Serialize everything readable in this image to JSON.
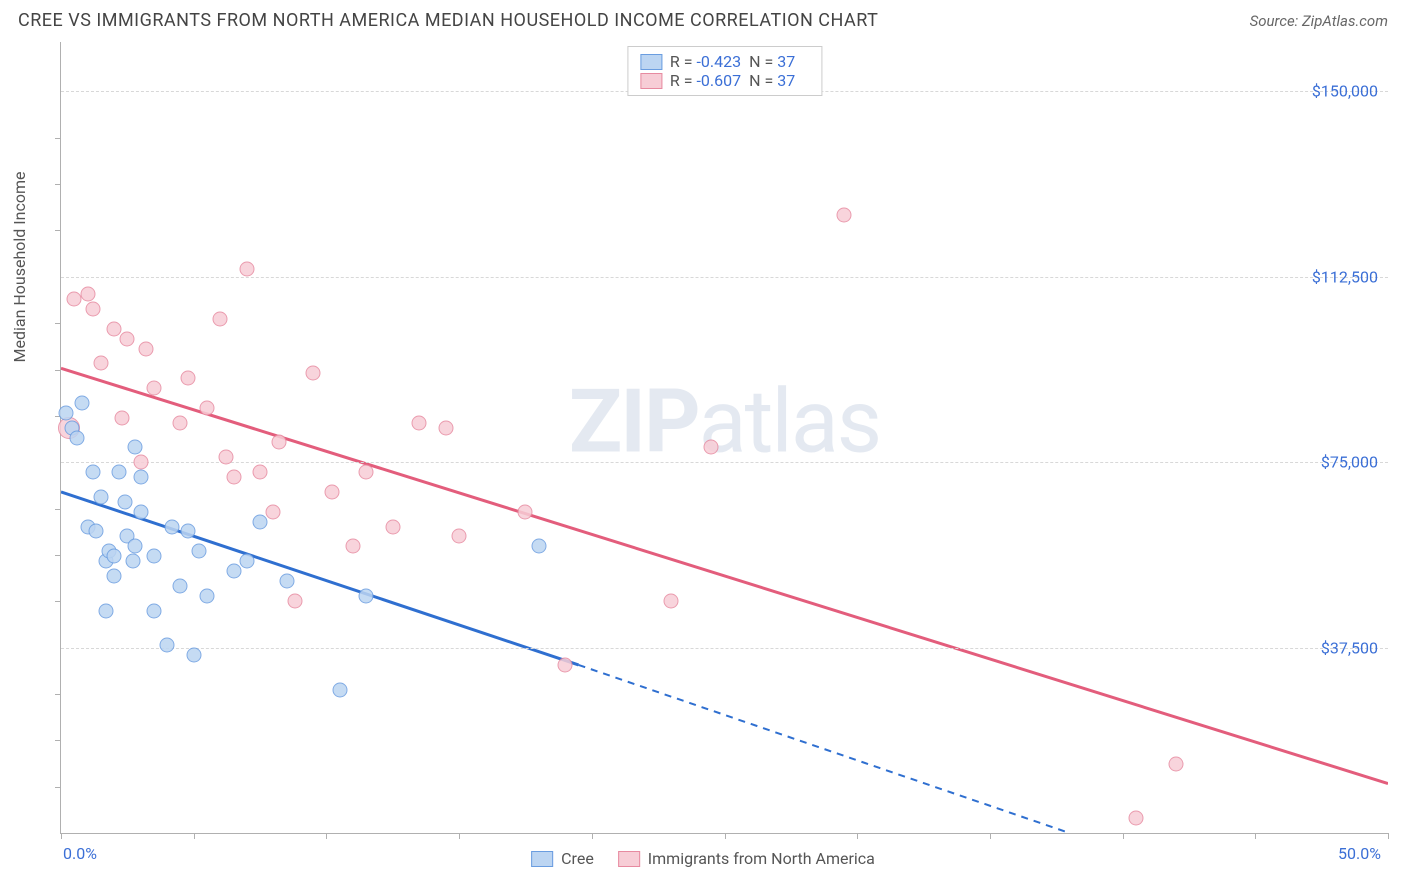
{
  "title": "CREE VS IMMIGRANTS FROM NORTH AMERICA MEDIAN HOUSEHOLD INCOME CORRELATION CHART",
  "source": "Source: ZipAtlas.com",
  "ylabel": "Median Household Income",
  "watermark_bold": "ZIP",
  "watermark_light": "atlas",
  "chart": {
    "type": "scatter",
    "background_color": "#ffffff",
    "grid_color": "#d8d8d8",
    "axis_color": "#b0b0b0",
    "label_color": "#3b6fd6",
    "text_color": "#555555",
    "marker_radius": 7.5,
    "xlim": [
      0,
      50
    ],
    "ylim": [
      0,
      160000
    ],
    "x_tick_positions": [
      0,
      5,
      10,
      15,
      20,
      25,
      30,
      35,
      40,
      45,
      50
    ],
    "x_tick_labels_shown": {
      "0": "0.0%",
      "50": "50.0%"
    },
    "y_grid": [
      {
        "v": 37500,
        "label": "$37,500"
      },
      {
        "v": 75000,
        "label": "$75,000"
      },
      {
        "v": 112500,
        "label": "$112,500"
      },
      {
        "v": 150000,
        "label": "$150,000"
      }
    ],
    "y_minor_ticks": [
      9375,
      18750,
      28125,
      46875,
      56250,
      65625,
      84375,
      93750,
      103125,
      121875,
      131250,
      140625
    ],
    "series": [
      {
        "name": "Cree",
        "fill": "#bcd5f2",
        "stroke": "#6a9de0",
        "line_color": "#2f6fd0",
        "R": "-0.423",
        "N": "37",
        "trend": {
          "solid": {
            "x1": 0,
            "y1": 69000,
            "x2": 19.5,
            "y2": 34000
          },
          "dashed": {
            "x1": 19.5,
            "y1": 34000,
            "x2": 38,
            "y2": 0
          }
        },
        "points": [
          [
            0.2,
            85000
          ],
          [
            0.4,
            82000
          ],
          [
            0.6,
            80000
          ],
          [
            0.8,
            87000
          ],
          [
            1.0,
            62000
          ],
          [
            1.2,
            73000
          ],
          [
            1.3,
            61000
          ],
          [
            1.5,
            68000
          ],
          [
            1.7,
            55000
          ],
          [
            1.7,
            45000
          ],
          [
            1.8,
            57000
          ],
          [
            2.0,
            52000
          ],
          [
            2.0,
            56000
          ],
          [
            2.2,
            73000
          ],
          [
            2.4,
            67000
          ],
          [
            2.5,
            60000
          ],
          [
            2.7,
            55000
          ],
          [
            2.8,
            58000
          ],
          [
            2.8,
            78000
          ],
          [
            3.0,
            65000
          ],
          [
            3.0,
            72000
          ],
          [
            3.5,
            45000
          ],
          [
            3.5,
            56000
          ],
          [
            4.0,
            38000
          ],
          [
            4.2,
            62000
          ],
          [
            4.5,
            50000
          ],
          [
            4.8,
            61000
          ],
          [
            5.0,
            36000
          ],
          [
            5.2,
            57000
          ],
          [
            5.5,
            48000
          ],
          [
            6.5,
            53000
          ],
          [
            7.0,
            55000
          ],
          [
            7.5,
            63000
          ],
          [
            8.5,
            51000
          ],
          [
            10.5,
            29000
          ],
          [
            11.5,
            48000
          ],
          [
            18.0,
            58000
          ]
        ]
      },
      {
        "name": "Immigrants from North America",
        "fill": "#f7cdd6",
        "stroke": "#e78aa0",
        "line_color": "#e35d7c",
        "R": "-0.607",
        "N": "37",
        "trend": {
          "solid": {
            "x1": 0,
            "y1": 94000,
            "x2": 50,
            "y2": 10000
          }
        },
        "points": [
          [
            0.3,
            82000,
            "lg"
          ],
          [
            0.5,
            108000
          ],
          [
            1.0,
            109000
          ],
          [
            1.2,
            106000
          ],
          [
            1.5,
            95000
          ],
          [
            2.0,
            102000
          ],
          [
            2.3,
            84000
          ],
          [
            2.5,
            100000
          ],
          [
            3.0,
            75000
          ],
          [
            3.2,
            98000
          ],
          [
            3.5,
            90000
          ],
          [
            4.5,
            83000
          ],
          [
            4.8,
            92000
          ],
          [
            5.5,
            86000
          ],
          [
            6.0,
            104000
          ],
          [
            6.2,
            76000
          ],
          [
            6.5,
            72000
          ],
          [
            7.0,
            114000
          ],
          [
            7.5,
            73000
          ],
          [
            8.0,
            65000
          ],
          [
            8.2,
            79000
          ],
          [
            8.8,
            47000
          ],
          [
            9.5,
            93000
          ],
          [
            10.2,
            69000
          ],
          [
            11.0,
            58000
          ],
          [
            11.5,
            73000
          ],
          [
            12.5,
            62000
          ],
          [
            13.5,
            83000
          ],
          [
            14.5,
            82000
          ],
          [
            15.0,
            60000
          ],
          [
            17.5,
            65000
          ],
          [
            19.0,
            34000
          ],
          [
            23.0,
            47000
          ],
          [
            24.5,
            78000
          ],
          [
            29.5,
            125000
          ],
          [
            40.5,
            3000
          ],
          [
            42.0,
            14000
          ]
        ]
      }
    ],
    "legend_top": [
      {
        "series_idx": 0
      },
      {
        "series_idx": 1
      }
    ],
    "legend_bottom": [
      {
        "series_idx": 0
      },
      {
        "series_idx": 1
      }
    ]
  }
}
